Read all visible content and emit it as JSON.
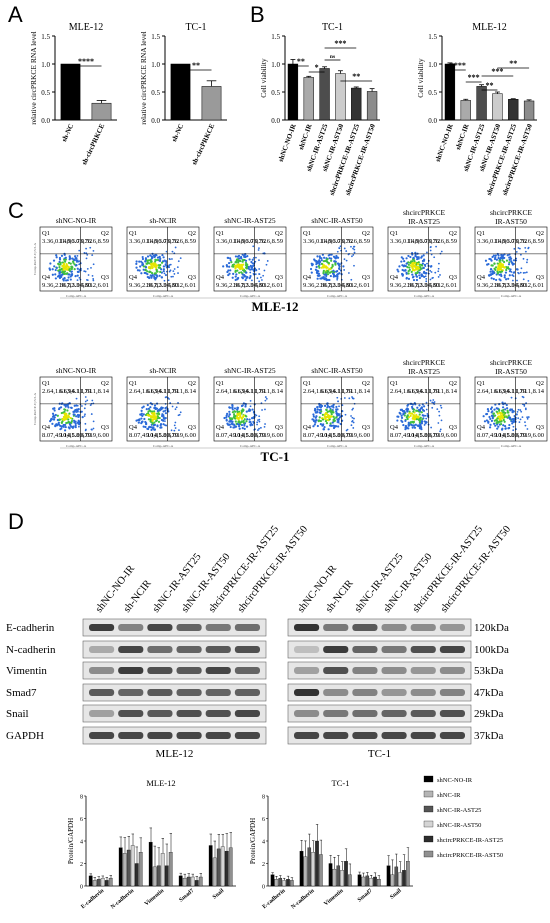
{
  "panels": {
    "A": "A",
    "B": "B",
    "C": "C",
    "D": "D"
  },
  "chart_data": [
    {
      "panel": "A",
      "type": "bar",
      "title": "MLE-12",
      "ylabel": "relative circPRKCE RNA level",
      "categories": [
        "sh-NC",
        "sh-circPRKCE"
      ],
      "values": [
        1.0,
        0.3
      ],
      "errors": [
        0.0,
        0.05
      ],
      "colors": [
        "#000000",
        "#9a9a9a"
      ],
      "ylim": [
        0,
        1.5
      ],
      "yticks": [
        "0.0",
        "0.5",
        "1.0",
        "1.5"
      ],
      "significance": [
        {
          "pair": [
            0,
            1
          ],
          "label": "****"
        }
      ]
    },
    {
      "panel": "A",
      "type": "bar",
      "title": "TC-1",
      "ylabel": "relative circPRKCE RNA level",
      "categories": [
        "sh-NC",
        "sh-circPRKCE"
      ],
      "values": [
        1.0,
        0.6
      ],
      "errors": [
        0.0,
        0.1
      ],
      "colors": [
        "#000000",
        "#9a9a9a"
      ],
      "ylim": [
        0,
        1.5
      ],
      "yticks": [
        "0.0",
        "0.5",
        "1.0",
        "1.5"
      ],
      "significance": [
        {
          "pair": [
            0,
            1
          ],
          "label": "**"
        }
      ]
    },
    {
      "panel": "B",
      "type": "bar",
      "title": "TC-1",
      "ylabel": "Cell viability",
      "categories": [
        "shNC-NO-IR",
        "shNC-IR",
        "shNC-IR-AST25",
        "shNC-IR-AST50",
        "shcircPRKCE-IR-AST25",
        "shcircPRKCE-IR-AST50"
      ],
      "values": [
        1.0,
        0.76,
        0.92,
        0.83,
        0.57,
        0.51
      ],
      "errors": [
        0.08,
        0.02,
        0.03,
        0.05,
        0.02,
        0.05
      ],
      "colors": [
        "#000000",
        "#aaaaaa",
        "#4d4d4d",
        "#cccccc",
        "#333333",
        "#8c8c8c"
      ],
      "ylim": [
        0,
        1.5
      ],
      "yticks": [
        "0.0",
        "0.5",
        "1.0",
        "1.5"
      ],
      "significance": [
        {
          "pair": [
            0,
            1
          ],
          "label": "**"
        },
        {
          "pair": [
            1,
            2
          ],
          "label": "*"
        },
        {
          "pair": [
            2,
            3
          ],
          "label": "ns"
        },
        {
          "pair": [
            2,
            4
          ],
          "label": "***"
        },
        {
          "pair": [
            3,
            5
          ],
          "label": "**"
        }
      ]
    },
    {
      "panel": "B",
      "type": "bar",
      "title": "MLE-12",
      "ylabel": "Cell viability",
      "categories": [
        "shNC-NO-IR",
        "shNC-IR",
        "shNC-IR-AST25",
        "shNC-IR-AST50",
        "shcircPRKCE-IR-AST25",
        "shcircPRKCE-IR-AST50"
      ],
      "values": [
        1.0,
        0.35,
        0.6,
        0.47,
        0.37,
        0.34
      ],
      "errors": [
        0.02,
        0.02,
        0.03,
        0.03,
        0.01,
        0.02
      ],
      "colors": [
        "#000000",
        "#aaaaaa",
        "#4d4d4d",
        "#cccccc",
        "#333333",
        "#8c8c8c"
      ],
      "ylim": [
        0,
        1.5
      ],
      "yticks": [
        "0.0",
        "0.5",
        "1.0",
        "1.5"
      ],
      "significance": [
        {
          "pair": [
            0,
            1
          ],
          "label": "****"
        },
        {
          "pair": [
            1,
            2
          ],
          "label": "***"
        },
        {
          "pair": [
            2,
            3
          ],
          "label": "**"
        },
        {
          "pair": [
            2,
            4
          ],
          "label": "***"
        },
        {
          "pair": [
            3,
            5
          ],
          "label": "**"
        }
      ]
    },
    {
      "panel": "D",
      "type": "bar",
      "title": "MLE-12",
      "ylabel": "Protein/GAPDH",
      "categories": [
        "E-cadherin",
        "N-cadherin",
        "Vimentin",
        "Smad7",
        "Snail"
      ],
      "series": [
        {
          "name": "shNC-NO-IR",
          "values": [
            0.9,
            3.4,
            3.9,
            0.9,
            3.6
          ]
        },
        {
          "name": "shNC-IR",
          "values": [
            0.5,
            2.9,
            1.7,
            0.7,
            2.5
          ]
        },
        {
          "name": "shNC-IR-AST25",
          "values": [
            0.6,
            3.2,
            1.8,
            0.8,
            3.3
          ]
        },
        {
          "name": "shNC-IR-AST50",
          "values": [
            0.7,
            3.6,
            2.9,
            0.8,
            3.5
          ]
        },
        {
          "name": "shcircPRKCE-IR-AST25",
          "values": [
            0.5,
            2.0,
            1.8,
            0.5,
            3.1
          ]
        },
        {
          "name": "shcircPRKCE-IR-AST50",
          "values": [
            0.7,
            3.0,
            3.0,
            0.8,
            3.4
          ]
        }
      ],
      "errors": [
        0.3,
        1.6,
        2.1,
        0.4,
        1.7
      ],
      "ylim": [
        0,
        8
      ],
      "yticks": [
        "0",
        "2",
        "4",
        "6",
        "8"
      ]
    },
    {
      "panel": "D",
      "type": "bar",
      "title": "TC-1",
      "ylabel": "Protein/GAPDH",
      "categories": [
        "E-cadherin",
        "N-cadherin",
        "Vimentin",
        "Smad7",
        "Snail"
      ],
      "series": [
        {
          "name": "shNC-NO-IR",
          "values": [
            1.0,
            3.1,
            2.0,
            1.0,
            1.8
          ]
        },
        {
          "name": "shNC-IR",
          "values": [
            0.6,
            2.6,
            1.5,
            0.8,
            1.0
          ]
        },
        {
          "name": "shNC-IR-AST25",
          "values": [
            0.7,
            3.4,
            1.8,
            0.9,
            1.7
          ]
        },
        {
          "name": "shNC-IR-AST50",
          "values": [
            0.5,
            3.0,
            1.4,
            0.7,
            1.2
          ]
        },
        {
          "name": "shcircPRKCE-IR-AST25",
          "values": [
            0.6,
            4.0,
            2.2,
            0.8,
            1.4
          ]
        },
        {
          "name": "shcircPRKCE-IR-AST50",
          "values": [
            0.5,
            2.8,
            1.0,
            0.6,
            2.2
          ]
        }
      ],
      "errors": [
        0.3,
        1.6,
        1.2,
        0.4,
        1.5
      ],
      "ylim": [
        0,
        8
      ],
      "yticks": [
        "0",
        "2",
        "4",
        "6",
        "8"
      ]
    }
  ],
  "legend": {
    "items": [
      "shNC-NO-IR",
      "shNC-IR",
      "shNC-IR-AST25",
      "shNC-IR-AST50",
      "shcircPRKCE-IR-AST25",
      "shcircPRKCE-IR-AST50"
    ],
    "colors": [
      "#000000",
      "#b5b5b5",
      "#555555",
      "#d5d5d5",
      "#2d2d2d",
      "#909090"
    ]
  },
  "flow": {
    "rows": [
      {
        "cell_line": "MLE-12",
        "titles": [
          "shNC-NO-IR",
          "sh-NCIR",
          "shNC-IR-AST25",
          "shNC-IR-AST50",
          "shcircPRKCE IR-AST25",
          "shcircPRKCE IR-AST50"
        ],
        "quads": [
          [
            "3.36",
            "0.14",
            "96.0",
            "0.52"
          ],
          [
            "11.0",
            "3.73",
            "76.6",
            "8.59"
          ],
          [
            "9.36",
            "2.36",
            "82.3",
            "5.93"
          ],
          [
            "10.7",
            "3.04",
            "80.2",
            "6.01"
          ],
          [
            "7.47",
            "3.45",
            "81.6",
            "7.44"
          ],
          [
            "6.35",
            "2.50",
            "83.4",
            "7.76"
          ]
        ]
      },
      {
        "cell_line": "TC-1",
        "titles": [
          "shNC-NO-IR",
          "sh-NCIR",
          "shNC-IR-AST25",
          "shNC-IR-AST50",
          "shcircPRKCE IR-AST25",
          "shcircPRKCE IR-AST50"
        ],
        "quads": [
          [
            "2.64",
            "1.61",
            "94.1",
            "1.61"
          ],
          [
            "6.63",
            "6.11",
            "79.1",
            "8.14"
          ],
          [
            "8.07",
            "4.10",
            "81.8",
            "6.03"
          ],
          [
            "9.14",
            "5.00",
            "79.9",
            "6.00"
          ],
          [
            "7.50",
            "3.16",
            "81.8",
            "7.56"
          ],
          [
            "5.73",
            "3.63",
            "83.8",
            "6.85"
          ]
        ]
      }
    ],
    "quadrant_labels": [
      "Q1",
      "Q2",
      "Q4",
      "Q3"
    ],
    "x_axis_label": "Comp-APC-A",
    "y_axis_label": "Comp-PerCP-Cy5.5-A"
  },
  "western": {
    "lanes": [
      "shNC-NO-IR",
      "sh-NCIR",
      "shNC-IR-AST25",
      "shNC-IR-AST50",
      "shcircPRKCE-IR-AST25",
      "shcircPRKCE-IR-AST50"
    ],
    "proteins": [
      "E-cadherin",
      "N-cadherin",
      "Vimentin",
      "Smad7",
      "Snail",
      "GAPDH"
    ],
    "sizes": [
      "120kDa",
      "100kDa",
      "53kDa",
      "47kDa",
      "29kDa",
      "37kDa"
    ],
    "left_label": "MLE-12",
    "right_label": "TC-1"
  }
}
